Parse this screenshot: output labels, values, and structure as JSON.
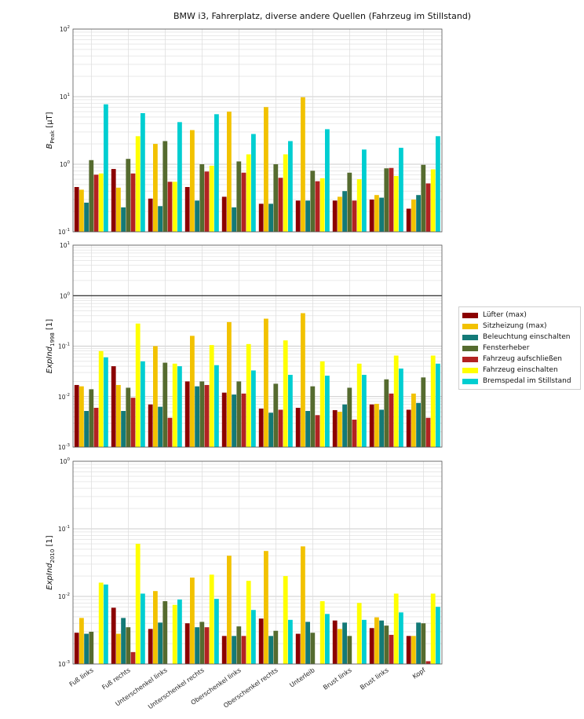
{
  "title": "BMW i3, Fahrerplatz, diverse andere Quellen (Fahrzeug im Stillstand)",
  "legend": {
    "items": [
      {
        "label": "Lüfter (max)",
        "color": "#8b0000"
      },
      {
        "label": "Sitzheizung (max)",
        "color": "#f2c200"
      },
      {
        "label": "Beleuchtung einschalten",
        "color": "#137a77"
      },
      {
        "label": "Fensterheber",
        "color": "#556b2f"
      },
      {
        "label": "Fahrzeug aufschließen",
        "color": "#b22222"
      },
      {
        "label": "Fahrzeug einschalten",
        "color": "#ffff00"
      },
      {
        "label": "Bremspedal im Stillstand",
        "color": "#00ced1"
      }
    ]
  },
  "chart_data": [
    {
      "type": "bar",
      "scale": "log",
      "ylabel_main": "B",
      "ylabel_sub": "Peak",
      "ylabel_unit": " [µT]",
      "ylim": [
        0.1,
        100
      ],
      "yticks": [
        {
          "base": "10",
          "exp": "-1"
        },
        {
          "base": "10",
          "exp": "0"
        },
        {
          "base": "10",
          "exp": "1"
        },
        {
          "base": "10",
          "exp": "2"
        }
      ],
      "categories": [
        "Fuß links",
        "Fuß rechts",
        "Unterschenkel links",
        "Unterschenkel rechts",
        "Oberschenkel links",
        "Oberschenkel rechts",
        "Unterleib",
        "Brust links",
        "Brust links",
        "Kopf"
      ],
      "series": [
        {
          "name": "Lüfter (max)",
          "values": [
            0.46,
            0.85,
            0.31,
            0.46,
            0.33,
            0.26,
            0.29,
            0.29,
            0.3,
            0.22
          ]
        },
        {
          "name": "Sitzheizung (max)",
          "values": [
            0.42,
            0.45,
            2.0,
            3.2,
            6.0,
            7.0,
            9.8,
            0.33,
            0.35,
            0.3
          ]
        },
        {
          "name": "Beleuchtung einschalten",
          "values": [
            0.27,
            0.23,
            0.24,
            0.29,
            0.23,
            0.26,
            0.29,
            0.4,
            0.32,
            0.35
          ]
        },
        {
          "name": "Fensterheber",
          "values": [
            1.15,
            1.2,
            2.2,
            1.0,
            1.1,
            1.0,
            0.8,
            0.75,
            0.87,
            0.98
          ]
        },
        {
          "name": "Fahrzeug aufschließen",
          "values": [
            0.7,
            0.73,
            0.55,
            0.78,
            0.75,
            0.63,
            0.56,
            0.29,
            0.88,
            0.52
          ]
        },
        {
          "name": "Fahrzeug einschalten",
          "values": [
            0.73,
            2.6,
            0.55,
            0.95,
            1.4,
            1.4,
            0.62,
            0.6,
            0.67,
            0.84
          ]
        },
        {
          "name": "Bremspedal im Stillstand",
          "values": [
            7.7,
            5.7,
            4.2,
            5.5,
            2.8,
            2.2,
            3.3,
            1.65,
            1.75,
            2.6
          ]
        }
      ]
    },
    {
      "type": "bar",
      "scale": "log",
      "ylabel_main": "ExpInd",
      "ylabel_sub": "1998",
      "ylabel_unit": " [1]",
      "ylim": [
        0.001,
        10
      ],
      "yticks": [
        {
          "base": "10",
          "exp": "-3"
        },
        {
          "base": "10",
          "exp": "-2"
        },
        {
          "base": "10",
          "exp": "-1"
        },
        {
          "base": "10",
          "exp": "0"
        },
        {
          "base": "10",
          "exp": "1"
        }
      ],
      "reference_line": 1,
      "categories": [
        "Fuß links",
        "Fuß rechts",
        "Unterschenkel links",
        "Unterschenkel rechts",
        "Oberschenkel links",
        "Oberschenkel rechts",
        "Unterleib",
        "Brust links",
        "Brust links",
        "Kopf"
      ],
      "series": [
        {
          "name": "Lüfter (max)",
          "values": [
            0.017,
            0.04,
            0.007,
            0.02,
            0.012,
            0.0058,
            0.006,
            0.0054,
            0.007,
            0.0055
          ]
        },
        {
          "name": "Sitzheizung (max)",
          "values": [
            0.016,
            0.017,
            0.1,
            0.16,
            0.3,
            0.35,
            0.45,
            0.005,
            0.0072,
            0.0115
          ]
        },
        {
          "name": "Beleuchtung einschalten",
          "values": [
            0.0052,
            0.0052,
            0.0063,
            0.016,
            0.011,
            0.0048,
            0.0052,
            0.007,
            0.0055,
            0.0075
          ]
        },
        {
          "name": "Fensterheber",
          "values": [
            0.014,
            0.015,
            0.047,
            0.02,
            0.02,
            0.018,
            0.016,
            0.015,
            0.022,
            0.024
          ]
        },
        {
          "name": "Fahrzeug aufschließen",
          "values": [
            0.006,
            0.0095,
            0.0038,
            0.017,
            0.0115,
            0.0055,
            0.0043,
            0.0035,
            0.0115,
            0.0038
          ]
        },
        {
          "name": "Fahrzeug einschalten",
          "values": [
            0.08,
            0.28,
            0.045,
            0.105,
            0.11,
            0.13,
            0.05,
            0.045,
            0.065,
            0.065
          ]
        },
        {
          "name": "Bremspedal im Stillstand",
          "values": [
            0.06,
            0.05,
            0.04,
            0.042,
            0.033,
            0.027,
            0.026,
            0.027,
            0.036,
            0.045
          ]
        }
      ]
    },
    {
      "type": "bar",
      "scale": "log",
      "ylabel_main": "ExpInd",
      "ylabel_sub": "2010",
      "ylabel_unit": " [1]",
      "ylim": [
        0.001,
        1
      ],
      "yticks": [
        {
          "base": "10",
          "exp": "-3"
        },
        {
          "base": "10",
          "exp": "-2"
        },
        {
          "base": "10",
          "exp": "-1"
        },
        {
          "base": "10",
          "exp": "0"
        }
      ],
      "categories": [
        "Fuß links",
        "Fuß rechts",
        "Unterschenkel links",
        "Unterschenkel rechts",
        "Oberschenkel links",
        "Oberschenkel rechts",
        "Unterleib",
        "Brust links",
        "Brust links",
        "Kopf"
      ],
      "series": [
        {
          "name": "Lüfter (max)",
          "values": [
            0.0029,
            0.0068,
            0.0033,
            0.004,
            0.0026,
            0.0047,
            0.0028,
            0.0044,
            0.0034,
            0.0026
          ]
        },
        {
          "name": "Sitzheizung (max)",
          "values": [
            0.0048,
            0.0028,
            0.012,
            0.019,
            0.04,
            0.047,
            0.055,
            0.0033,
            0.0049,
            0.0026
          ]
        },
        {
          "name": "Beleuchtung einschalten",
          "values": [
            0.0028,
            0.0048,
            0.0041,
            0.0035,
            0.0026,
            0.0026,
            0.0042,
            0.0041,
            0.0044,
            0.0041
          ]
        },
        {
          "name": "Fensterheber",
          "values": [
            0.003,
            0.0035,
            0.0085,
            0.0042,
            0.0036,
            0.0031,
            0.0029,
            0.0026,
            0.0037,
            0.004
          ]
        },
        {
          "name": "Fahrzeug aufschließen",
          "values": [
            0.001,
            0.0015,
            0.001,
            0.0035,
            0.0026,
            0.001,
            0.001,
            0.001,
            0.0027,
            0.0011
          ]
        },
        {
          "name": "Fahrzeug einschalten",
          "values": [
            0.016,
            0.06,
            0.0075,
            0.021,
            0.017,
            0.02,
            0.0085,
            0.008,
            0.011,
            0.011
          ]
        },
        {
          "name": "Bremspedal im Stillstand",
          "values": [
            0.015,
            0.011,
            0.009,
            0.0092,
            0.0063,
            0.0045,
            0.0055,
            0.0045,
            0.0058,
            0.007
          ]
        }
      ]
    }
  ]
}
